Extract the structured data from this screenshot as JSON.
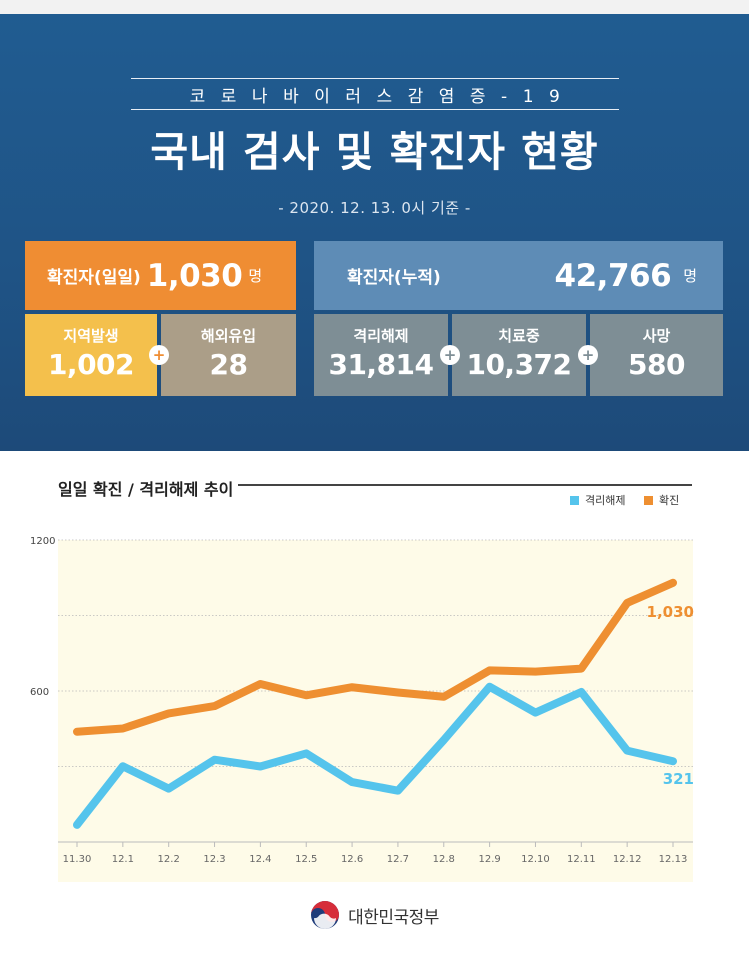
{
  "header": {
    "subtitle": "코로나바이러스감염증-19",
    "title": "국내 검사 및 확진자 현황",
    "date_line": "- 2020. 12. 13. 0시 기준 -"
  },
  "summary": {
    "daily_label": "확진자(일일)",
    "daily_value": "1,030",
    "daily_unit": "명",
    "cumulative_label": "확진자(누적)",
    "cumulative_value": "42,766",
    "cumulative_unit": "명",
    "local_label": "지역발생",
    "local_value": "1,002",
    "overseas_label": "해외유입",
    "overseas_value": "28",
    "released_label": "격리해제",
    "released_value": "31,814",
    "treatment_label": "치료중",
    "treatment_value": "10,372",
    "death_label": "사망",
    "death_value": "580",
    "plus_sign": "+"
  },
  "colors": {
    "orange": "#ef8d33",
    "blue_box": "#5e8cb6",
    "yellow": "#f4c04c",
    "tan": "#ab9e88",
    "grey": "#7e8e95",
    "release_line": "#55c4ec",
    "confirmed_line": "#ee8f31",
    "plot_bg": "#fefbe8"
  },
  "chart_data": {
    "type": "line",
    "title": "일일 확진 / 격리해제 추이",
    "categories": [
      "11.30",
      "12.1",
      "12.2",
      "12.3",
      "12.4",
      "12.5",
      "12.6",
      "12.7",
      "12.8",
      "12.9",
      "12.10",
      "12.11",
      "12.12",
      "12.13"
    ],
    "y_ticks": [
      600,
      1200
    ],
    "y_tick_labels": [
      "600",
      "1200"
    ],
    "ylim": [
      0,
      1200
    ],
    "grid": true,
    "legend_position": "top-right",
    "series": [
      {
        "name": "격리해제",
        "color": "#55c4ec",
        "values": [
          68,
          301,
          212,
          327,
          300,
          352,
          238,
          204,
          405,
          617,
          514,
          596,
          363,
          321
        ],
        "end_label": "321"
      },
      {
        "name": "확진",
        "color": "#ee8f31",
        "values": [
          438,
          451,
          511,
          540,
          628,
          583,
          615,
          594,
          577,
          682,
          677,
          689,
          950,
          1030
        ],
        "end_label": "1,030"
      }
    ]
  },
  "footer": {
    "org": "대한민국정부",
    "logo": "taegeuk-emblem-icon"
  }
}
